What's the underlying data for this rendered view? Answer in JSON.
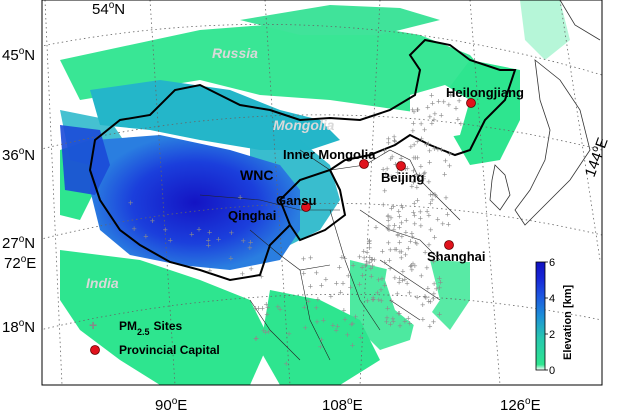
{
  "map": {
    "lon_labels": [
      {
        "text": "90",
        "unit": "E"
      },
      {
        "text": "108",
        "unit": "E"
      },
      {
        "text": "126",
        "unit": "E"
      }
    ],
    "lat_labels": [
      {
        "text": "45",
        "unit": "N"
      },
      {
        "text": "36",
        "unit": "N"
      },
      {
        "text": "27",
        "unit": "N"
      },
      {
        "text": "18",
        "unit": "N"
      }
    ],
    "top_label": {
      "text": "54",
      "unit": "N"
    },
    "left_lon_label": {
      "text": "72",
      "unit": "E"
    },
    "right_lon_label": {
      "text": "144",
      "unit": "E"
    },
    "countries": [
      "Russia",
      "Mongolia",
      "India"
    ],
    "region_label": "WNC",
    "cities": [
      {
        "name": "Heilongjiang"
      },
      {
        "name": "Inner Mongolia"
      },
      {
        "name": "Beijing"
      },
      {
        "name": "Gansu"
      },
      {
        "name": "Qinghai"
      },
      {
        "name": "Shanghai"
      }
    ],
    "colorbar": {
      "title": "Elevation [km]",
      "ticks": [
        "0",
        "2",
        "4",
        "6"
      ],
      "colors": [
        "#ffffff",
        "#2ee58f",
        "#27c6b0",
        "#1d8fd8",
        "#1d52e0",
        "#1726d6",
        "#1111c0"
      ]
    },
    "legend": {
      "sites_label": "PM",
      "sites_sub": "2.5",
      "sites_suffix": "Sites",
      "capital_label": "Provincial Capital"
    },
    "colors": {
      "low_green": "#2ee58f",
      "mid_teal": "#22b7c8",
      "high_blue": "#1a3fe0",
      "peak_blue": "#0f14b8",
      "capital_red": "#e0121c",
      "site_gray": "#8c8c8c"
    }
  }
}
